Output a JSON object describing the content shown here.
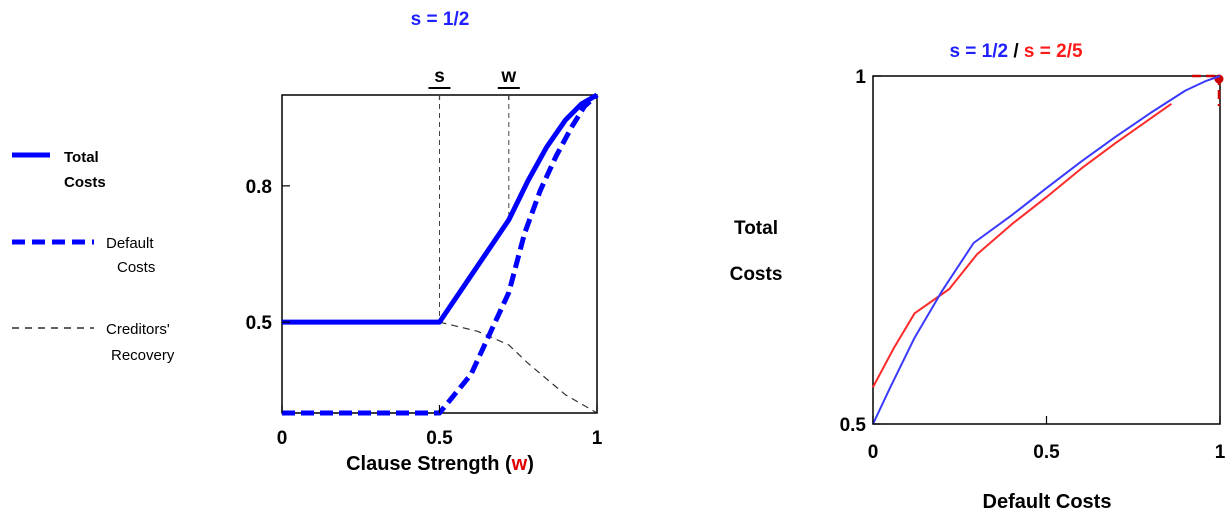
{
  "chart_data": [
    {
      "type": "line",
      "title": "s = 1/2",
      "title_color": "#1f1fff",
      "xlabel_prefix": "Clause Strength (",
      "xlabel_var": "w",
      "xlabel_suffix": ")",
      "xlabel_var_color": "#e00000",
      "xlim": [
        0,
        1
      ],
      "ylim": [
        0.3,
        1.0
      ],
      "x_ticks": [
        0,
        0.5,
        1
      ],
      "x_tick_labels": [
        "0",
        "0.5",
        "1"
      ],
      "y_ticks": [
        0.5,
        0.8
      ],
      "y_tick_labels": [
        "0.5",
        "0.8"
      ],
      "top_markers": [
        {
          "label": "s",
          "x": 0.5
        },
        {
          "label": "w",
          "x": 0.72
        }
      ],
      "series": [
        {
          "name": "Total Costs",
          "color": "#0000ff",
          "style": "solid",
          "x": [
            0,
            0.5,
            0.72,
            0.78,
            0.84,
            0.9,
            0.95,
            1.0
          ],
          "y": [
            0.5,
            0.5,
            0.725,
            0.81,
            0.885,
            0.945,
            0.98,
            1.0
          ]
        },
        {
          "name": "Default Costs",
          "color": "#0000ff",
          "style": "dashed",
          "x": [
            0,
            0.5,
            0.6,
            0.72,
            0.77,
            0.82,
            0.87,
            0.92,
            0.96,
            1.0
          ],
          "y": [
            0.3,
            0.3,
            0.385,
            0.565,
            0.695,
            0.79,
            0.865,
            0.93,
            0.975,
            1.0
          ]
        },
        {
          "name": "Creditors' Recovery",
          "color": "#333333",
          "style": "thin-dashed",
          "x": [
            0.5,
            0.62,
            0.72,
            0.78,
            0.84,
            0.9,
            0.95,
            1.0
          ],
          "y": [
            0.5,
            0.48,
            0.45,
            0.41,
            0.375,
            0.34,
            0.32,
            0.3
          ]
        }
      ],
      "legend": {
        "placement": "left",
        "entries": [
          {
            "line1": "Total",
            "line2": "Costs"
          },
          {
            "line1": "Default",
            "line2": "Costs"
          },
          {
            "line1": "Creditors'",
            "line2": "Recovery"
          }
        ]
      }
    },
    {
      "type": "line",
      "title_part1": "s = 1/2",
      "title_sep": " / ",
      "title_part2": "s = 2/5",
      "title_color1": "#1f1fff",
      "title_color2": "#ff1a1a",
      "xlabel": "Default Costs",
      "ylabel_line1": "Total",
      "ylabel_line2": "Costs",
      "xlim": [
        0,
        1
      ],
      "ylim": [
        0.5,
        1.0
      ],
      "x_ticks": [
        0,
        0.5,
        1
      ],
      "x_tick_labels": [
        "0",
        "0.5",
        "1"
      ],
      "y_ticks": [
        0.5,
        1
      ],
      "y_tick_labels": [
        "0.5",
        "1"
      ],
      "series": [
        {
          "color": "#3a3aff",
          "x": [
            0,
            0.05,
            0.12,
            0.2,
            0.29,
            0.4,
            0.5,
            0.6,
            0.7,
            0.8,
            0.9,
            0.96,
            1.0
          ],
          "y": [
            0.5,
            0.553,
            0.624,
            0.692,
            0.76,
            0.8,
            0.839,
            0.877,
            0.913,
            0.947,
            0.979,
            0.993,
            1.0
          ]
        },
        {
          "color": "#ff2a2a",
          "x": [
            0,
            0.06,
            0.12,
            0.22,
            0.3,
            0.4,
            0.5,
            0.6,
            0.7,
            0.78,
            0.86
          ],
          "y": [
            0.553,
            0.609,
            0.659,
            0.694,
            0.744,
            0.787,
            0.826,
            0.867,
            0.904,
            0.932,
            0.96
          ]
        }
      ],
      "corner_marker_color": "#cc0000"
    }
  ]
}
